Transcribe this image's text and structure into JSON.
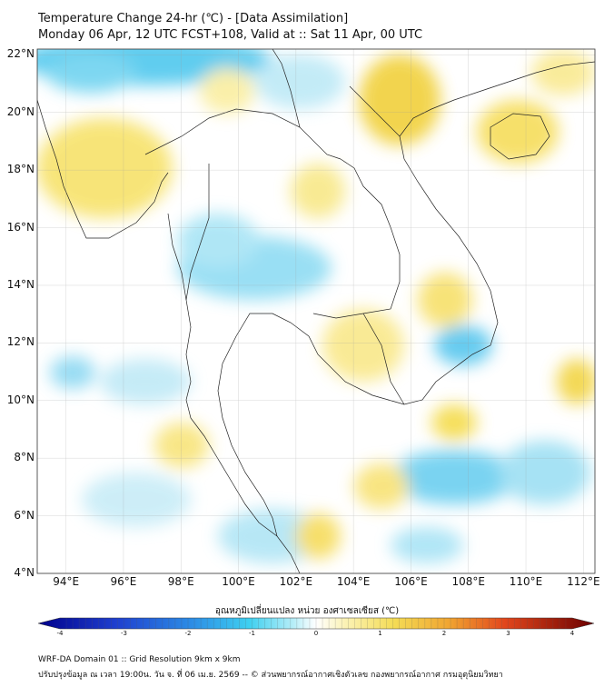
{
  "header": {
    "title": "Temperature Change 24-hr (℃) - [Data Assimilation]",
    "subtitle": "Monday 06 Apr, 12 UTC FCST+108, Valid at :: Sat 11 Apr, 00 UTC"
  },
  "map": {
    "lat_ticks": [
      "22°N",
      "20°N",
      "18°N",
      "16°N",
      "14°N",
      "12°N",
      "10°N",
      "8°N",
      "6°N",
      "4°N"
    ],
    "lon_ticks": [
      "94°E",
      "96°E",
      "98°E",
      "100°E",
      "102°E",
      "104°E",
      "106°E",
      "108°E",
      "110°E",
      "112°E"
    ],
    "lat_range": [
      4,
      22.2
    ],
    "lon_range": [
      93,
      112.4
    ],
    "background_color": "#ffffff",
    "border_color": "#222222"
  },
  "colorbar": {
    "label": "อุณหภูมิเปลี่ยนแปลง หน่วย องศาเซลเซียส (℃)",
    "ticks": [
      "-4",
      "-3",
      "-2",
      "-1",
      "0",
      "1",
      "2",
      "3",
      "4"
    ],
    "range": [
      -4,
      4
    ],
    "low_color": "#00008b",
    "mid_color": "#ffffff",
    "high_color": "#6b0000"
  },
  "footer": {
    "line1": "WRF-DA Domain 01 :: Grid Resolution 9km x 9km",
    "line2": "ปรับปรุงข้อมูล ณ เวลา 19:00น. วัน จ. ที่ 06 เม.ย. 2569 -- © ส่วนพยากรณ์อากาศเชิงตัวเลข กองพยากรณ์อากาศ กรมอุตุนิยมวิทยา"
  }
}
